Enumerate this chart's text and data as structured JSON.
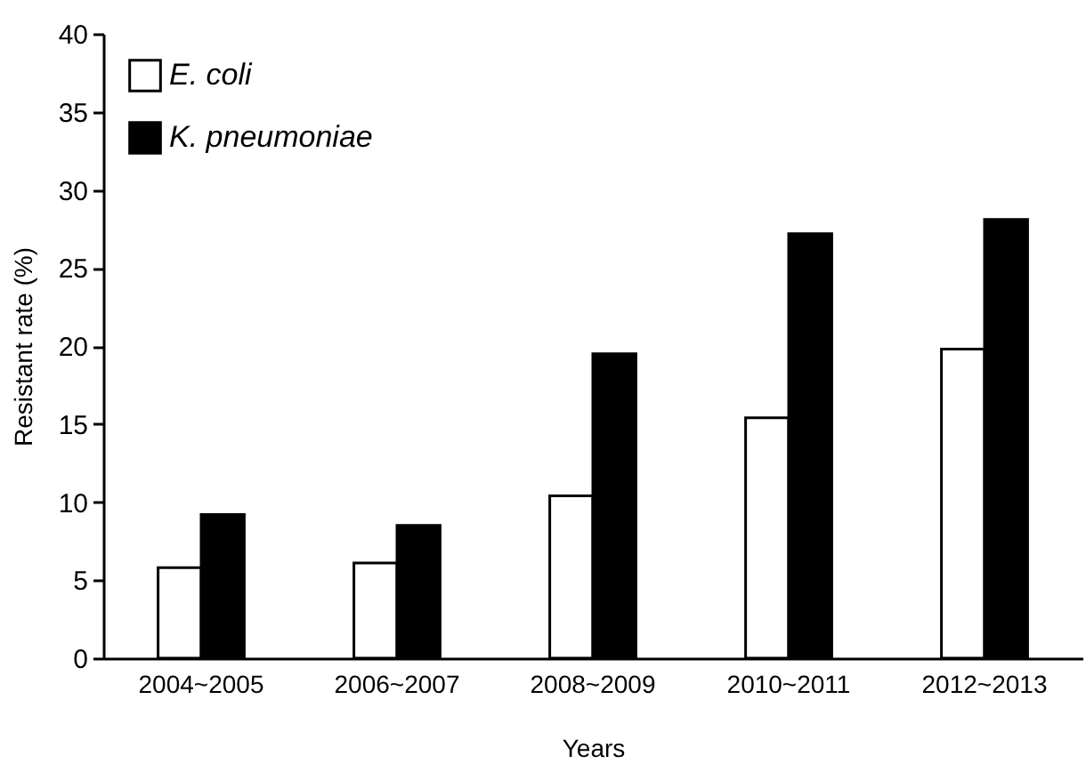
{
  "chart_data": {
    "type": "bar",
    "xlabel": "Years",
    "ylabel": "Resistant rate (%)",
    "categories": [
      "2004~2005",
      "2006~2007",
      "2008~2009",
      "2010~2011",
      "2012~2013"
    ],
    "series": [
      {
        "name": "E. coli",
        "color": "#ffffff",
        "values": [
          5.8,
          6.1,
          10.4,
          15.4,
          19.8
        ]
      },
      {
        "name": "K. pneumoniae",
        "color": "#000000",
        "values": [
          9.2,
          8.5,
          19.5,
          27.2,
          28.1
        ]
      }
    ],
    "ylim": [
      0,
      40
    ],
    "yticks": [
      0,
      5,
      10,
      15,
      20,
      25,
      30,
      35,
      40
    ],
    "grid": false,
    "legend": "top left"
  }
}
